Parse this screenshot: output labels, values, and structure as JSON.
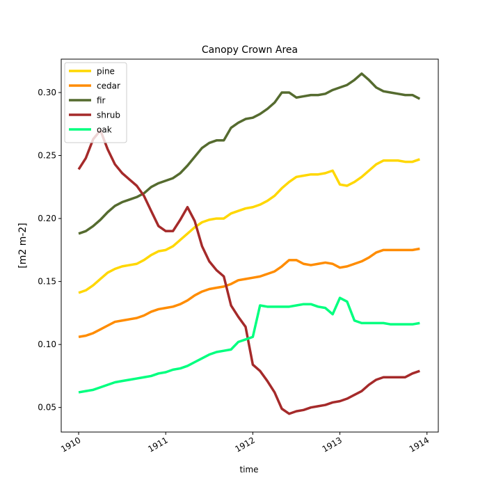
{
  "chart_data": {
    "type": "line",
    "title": "Canopy Crown Area",
    "xlabel": "time",
    "ylabel": "[m2 m-2]",
    "xlim": [
      1909.8,
      1914.13
    ],
    "ylim": [
      0.0305,
      0.3265
    ],
    "x_ticks": [
      1910,
      1911,
      1912,
      1913,
      1914
    ],
    "x_tick_labels": [
      "1910",
      "1911",
      "1912",
      "1913",
      "1914"
    ],
    "y_ticks": [
      0.05,
      0.1,
      0.15,
      0.2,
      0.25,
      0.3
    ],
    "y_tick_labels": [
      "0.05",
      "0.10",
      "0.15",
      "0.20",
      "0.25",
      "0.30"
    ],
    "grid": false,
    "legend_position": "top-left",
    "x": [
      1910.0,
      1910.083,
      1910.167,
      1910.25,
      1910.333,
      1910.417,
      1910.5,
      1910.583,
      1910.667,
      1910.75,
      1910.833,
      1910.917,
      1911.0,
      1911.083,
      1911.167,
      1911.25,
      1911.333,
      1911.417,
      1911.5,
      1911.583,
      1911.667,
      1911.75,
      1911.833,
      1911.917,
      1912.0,
      1912.083,
      1912.167,
      1912.25,
      1912.333,
      1912.417,
      1912.5,
      1912.583,
      1912.667,
      1912.75,
      1912.833,
      1912.917,
      1913.0,
      1913.083,
      1913.167,
      1913.25,
      1913.333,
      1913.417,
      1913.5,
      1913.583,
      1913.667,
      1913.75,
      1913.833,
      1913.917
    ],
    "series": [
      {
        "name": "pine",
        "color": "#ffd700",
        "values": [
          0.141,
          0.143,
          0.147,
          0.152,
          0.157,
          0.16,
          0.162,
          0.163,
          0.164,
          0.167,
          0.171,
          0.174,
          0.175,
          0.178,
          0.183,
          0.188,
          0.193,
          0.197,
          0.199,
          0.2,
          0.2,
          0.204,
          0.206,
          0.208,
          0.209,
          0.211,
          0.214,
          0.218,
          0.224,
          0.229,
          0.233,
          0.234,
          0.235,
          0.235,
          0.236,
          0.238,
          0.227,
          0.226,
          0.229,
          0.233,
          0.238,
          0.243,
          0.246,
          0.246,
          0.246,
          0.245,
          0.245,
          0.247
        ]
      },
      {
        "name": "cedar",
        "color": "#ff8c00",
        "values": [
          0.106,
          0.107,
          0.109,
          0.112,
          0.115,
          0.118,
          0.119,
          0.12,
          0.121,
          0.123,
          0.126,
          0.128,
          0.129,
          0.13,
          0.132,
          0.135,
          0.139,
          0.142,
          0.144,
          0.145,
          0.146,
          0.148,
          0.151,
          0.152,
          0.153,
          0.154,
          0.156,
          0.158,
          0.162,
          0.167,
          0.167,
          0.164,
          0.163,
          0.164,
          0.165,
          0.164,
          0.161,
          0.162,
          0.164,
          0.166,
          0.169,
          0.173,
          0.175,
          0.175,
          0.175,
          0.175,
          0.175,
          0.176
        ]
      },
      {
        "name": "fir",
        "color": "#556b2f",
        "values": [
          0.188,
          0.19,
          0.194,
          0.199,
          0.205,
          0.21,
          0.213,
          0.215,
          0.217,
          0.22,
          0.225,
          0.228,
          0.23,
          0.232,
          0.236,
          0.242,
          0.249,
          0.256,
          0.26,
          0.262,
          0.262,
          0.272,
          0.276,
          0.279,
          0.28,
          0.283,
          0.287,
          0.292,
          0.3,
          0.3,
          0.296,
          0.297,
          0.298,
          0.298,
          0.299,
          0.302,
          0.304,
          0.306,
          0.31,
          0.315,
          0.31,
          0.304,
          0.301,
          0.3,
          0.299,
          0.298,
          0.298,
          0.295
        ]
      },
      {
        "name": "shrub",
        "color": "#a52a2a",
        "values": [
          0.239,
          0.248,
          0.263,
          0.27,
          0.255,
          0.243,
          0.236,
          0.231,
          0.226,
          0.218,
          0.206,
          0.194,
          0.19,
          0.19,
          0.199,
          0.209,
          0.198,
          0.178,
          0.166,
          0.159,
          0.154,
          0.131,
          0.122,
          0.114,
          0.084,
          0.079,
          0.071,
          0.062,
          0.049,
          0.045,
          0.047,
          0.048,
          0.05,
          0.051,
          0.052,
          0.054,
          0.055,
          0.057,
          0.06,
          0.063,
          0.068,
          0.072,
          0.074,
          0.074,
          0.074,
          0.074,
          0.077,
          0.079
        ]
      },
      {
        "name": "oak",
        "color": "#00ff7f",
        "values": [
          0.062,
          0.063,
          0.064,
          0.066,
          0.068,
          0.07,
          0.071,
          0.072,
          0.073,
          0.074,
          0.075,
          0.077,
          0.078,
          0.08,
          0.081,
          0.083,
          0.086,
          0.089,
          0.092,
          0.094,
          0.095,
          0.096,
          0.102,
          0.104,
          0.106,
          0.131,
          0.13,
          0.13,
          0.13,
          0.13,
          0.131,
          0.132,
          0.132,
          0.13,
          0.129,
          0.124,
          0.137,
          0.134,
          0.119,
          0.117,
          0.117,
          0.117,
          0.117,
          0.116,
          0.116,
          0.116,
          0.116,
          0.117
        ]
      }
    ]
  }
}
